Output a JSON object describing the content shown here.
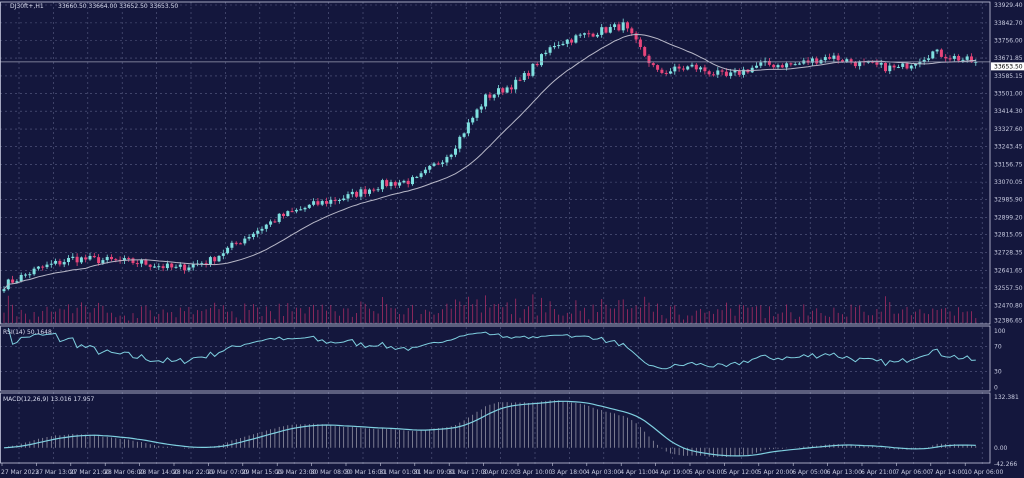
{
  "header": {
    "symbol": "DJ30ft+,H1",
    "ohlc": "33660.50 33664.00 33652.50 33653.50"
  },
  "colors": {
    "background": "#14173d",
    "bull": "#7fe0e0",
    "bear": "#e8457a",
    "ma": "#b8b8c8",
    "grid": "#5a5f85",
    "volume": "#c0306a",
    "rsi": "#7fd0e0",
    "macd_signal": "#7fd0e0",
    "macd_hist": "#c8c8d0"
  },
  "chart_data": [
    {
      "type": "candlestick",
      "title": "DJ30ft+,H1",
      "timeframe": "H1",
      "current_price": "33653.50",
      "y_ticks": [
        "33929.40",
        "33842.70",
        "33756.00",
        "33671.85",
        "33585.15",
        "33501.00",
        "33414.30",
        "33327.60",
        "33243.45",
        "33156.75",
        "33070.05",
        "32985.90",
        "32899.20",
        "32815.05",
        "32728.35",
        "32641.65",
        "32557.50",
        "32470.80",
        "32386.65"
      ],
      "ylim": [
        32386.65,
        33929.4
      ],
      "x_ticks": [
        "27 Mar 2023",
        "27 Mar 13:00",
        "27 Mar 21:00",
        "28 Mar 06:00",
        "28 Mar 14:00",
        "28 Mar 22:00",
        "29 Mar 07:00",
        "29 Mar 15:00",
        "29 Mar 23:00",
        "30 Mar 08:00",
        "30 Mar 16:00",
        "31 Mar 01:00",
        "31 Mar 09:00",
        "31 Mar 17:00",
        "3 Apr 02:00",
        "3 Apr 10:00",
        "3 Apr 18:00",
        "4 Apr 03:00",
        "4 Apr 11:00",
        "4 Apr 19:00",
        "5 Apr 04:00",
        "5 Apr 12:00",
        "5 Apr 20:00",
        "6 Apr 05:00",
        "6 Apr 13:00",
        "6 Apr 21:00",
        "7 Apr 06:00",
        "7 Apr 14:00",
        "10 Apr 06:00"
      ],
      "approx_close_at_x_ticks": [
        32571,
        32650,
        32700,
        32690,
        32680,
        32650,
        32690,
        32800,
        32900,
        32960,
        33000,
        33060,
        33080,
        33220,
        33480,
        33560,
        33740,
        33790,
        33830,
        33600,
        33630,
        33580,
        33640,
        33640,
        33680,
        33640,
        33620,
        33700,
        33660
      ],
      "overlay": "moving average",
      "grid": true
    },
    {
      "type": "line",
      "title": "RSI(14) 50.1648",
      "y_ticks": [
        "100",
        "70",
        "30",
        "0"
      ],
      "ylim": [
        0,
        100
      ],
      "levels": [
        70,
        30
      ]
    },
    {
      "type": "bar+line",
      "title": "MACD(12,26,9) 13.016 17.957",
      "y_ticks": [
        "132.381",
        "0.00",
        "-42.266"
      ],
      "ylim": [
        -42.266,
        132.381
      ]
    }
  ]
}
